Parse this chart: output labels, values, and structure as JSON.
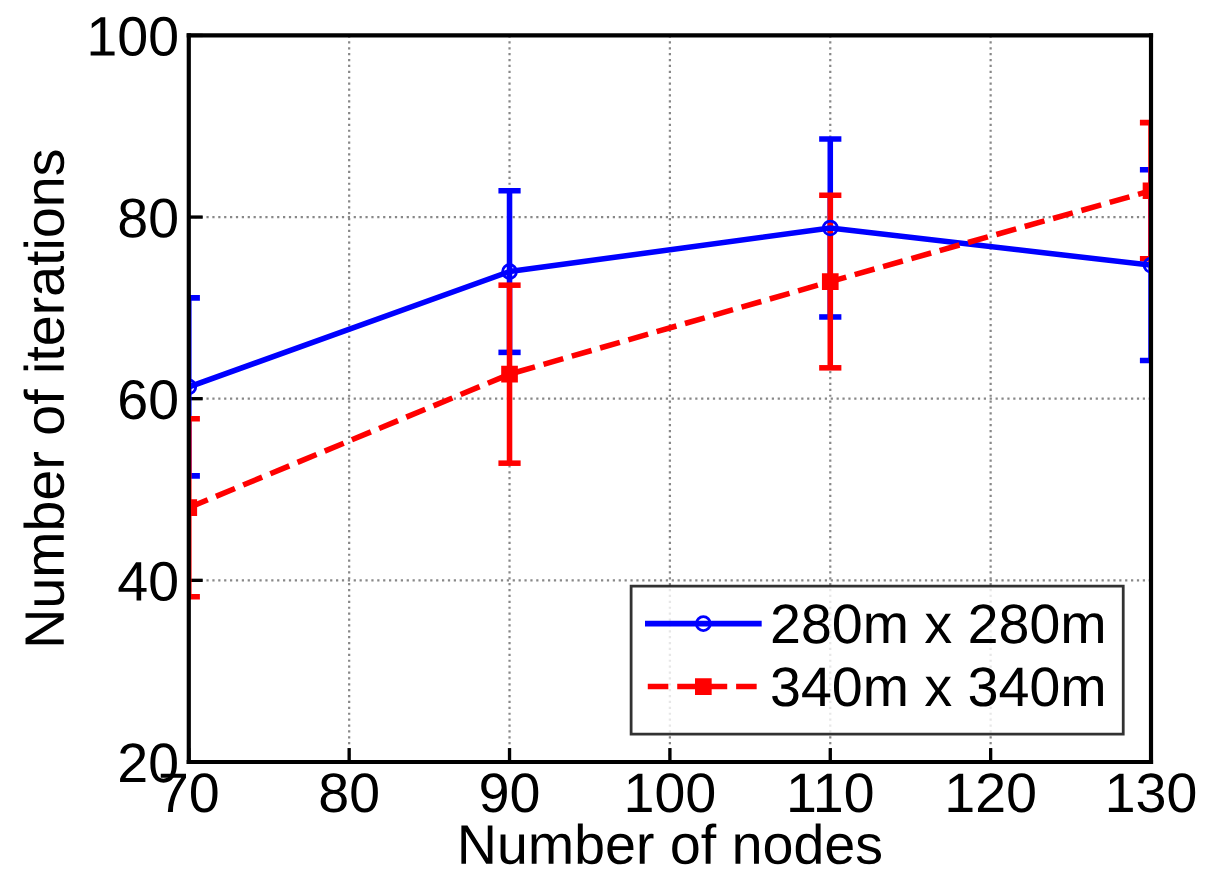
{
  "chart_data": {
    "type": "line",
    "xlabel": "Number of nodes",
    "ylabel": "Number of iterations",
    "x": [
      70,
      90,
      110,
      130
    ],
    "series": [
      {
        "name": "280m x 280m",
        "color": "#0000ff",
        "marker": "circle",
        "line_style": "solid",
        "values": [
          61.3,
          74.0,
          78.8,
          74.7
        ],
        "errors": [
          9.8,
          8.9,
          9.8,
          10.5
        ]
      },
      {
        "name": "340m x 340m",
        "color": "#ff0000",
        "marker": "square",
        "line_style": "dashed",
        "values": [
          48.0,
          62.7,
          72.9,
          82.9
        ],
        "errors": [
          9.8,
          9.8,
          9.5,
          7.5
        ]
      }
    ],
    "xlim": [
      70,
      130
    ],
    "xticks": [
      70,
      80,
      90,
      100,
      110,
      120,
      130
    ],
    "ylim": [
      20,
      100
    ],
    "yticks": [
      20,
      40,
      60,
      80,
      100
    ],
    "grid": true,
    "legend": "bottom right"
  }
}
